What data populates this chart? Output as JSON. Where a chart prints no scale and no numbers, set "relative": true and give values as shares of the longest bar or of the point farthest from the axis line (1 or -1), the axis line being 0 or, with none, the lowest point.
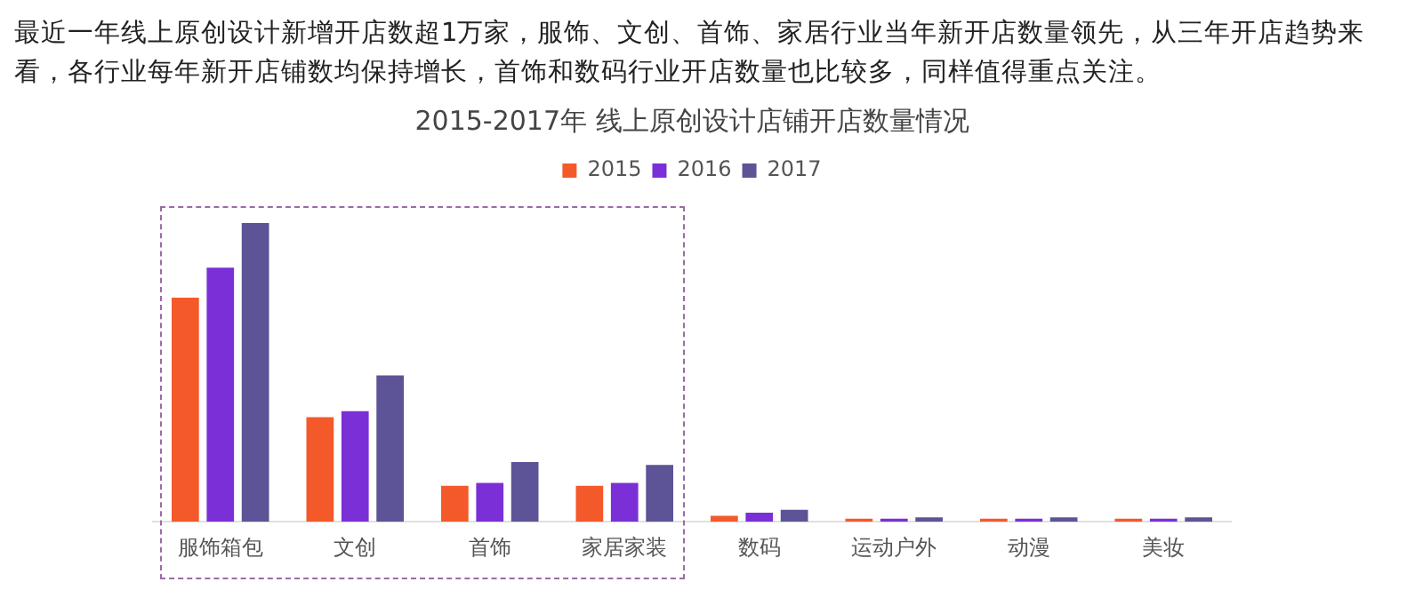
{
  "chart_data": {
    "type": "bar",
    "title": "2015-2017年 线上原创设计店铺开店数量情况",
    "annotations": [
      "最近一年线上原创设计新增开店数超1万家，服饰、文创、首饰、家居行业当年新开店数量领先，从三年开店趋势来看，各行业每年新开店铺数均保持增长，首饰和数码行业开店数量也比较多，同样值得重点关注。"
    ],
    "categories": [
      "服饰箱包",
      "文创",
      "首饰",
      "家居家装",
      "数码",
      "运动户外",
      "动漫",
      "美妆"
    ],
    "relative": true,
    "legend": "top",
    "grid": false,
    "series": [
      {
        "name": "2015",
        "color": "#f4592a",
        "values": [
          0.75,
          0.35,
          0.12,
          0.12,
          0.02,
          0.01,
          0.01,
          0.01
        ]
      },
      {
        "name": "2016",
        "color": "#7b2fd6",
        "values": [
          0.85,
          0.37,
          0.13,
          0.13,
          0.03,
          0.01,
          0.01,
          0.01
        ]
      },
      {
        "name": "2017",
        "color": "#5c5496",
        "values": [
          1,
          0.49,
          0.2,
          0.19,
          0.04,
          0.015,
          0.015,
          0.015
        ]
      }
    ]
  }
}
